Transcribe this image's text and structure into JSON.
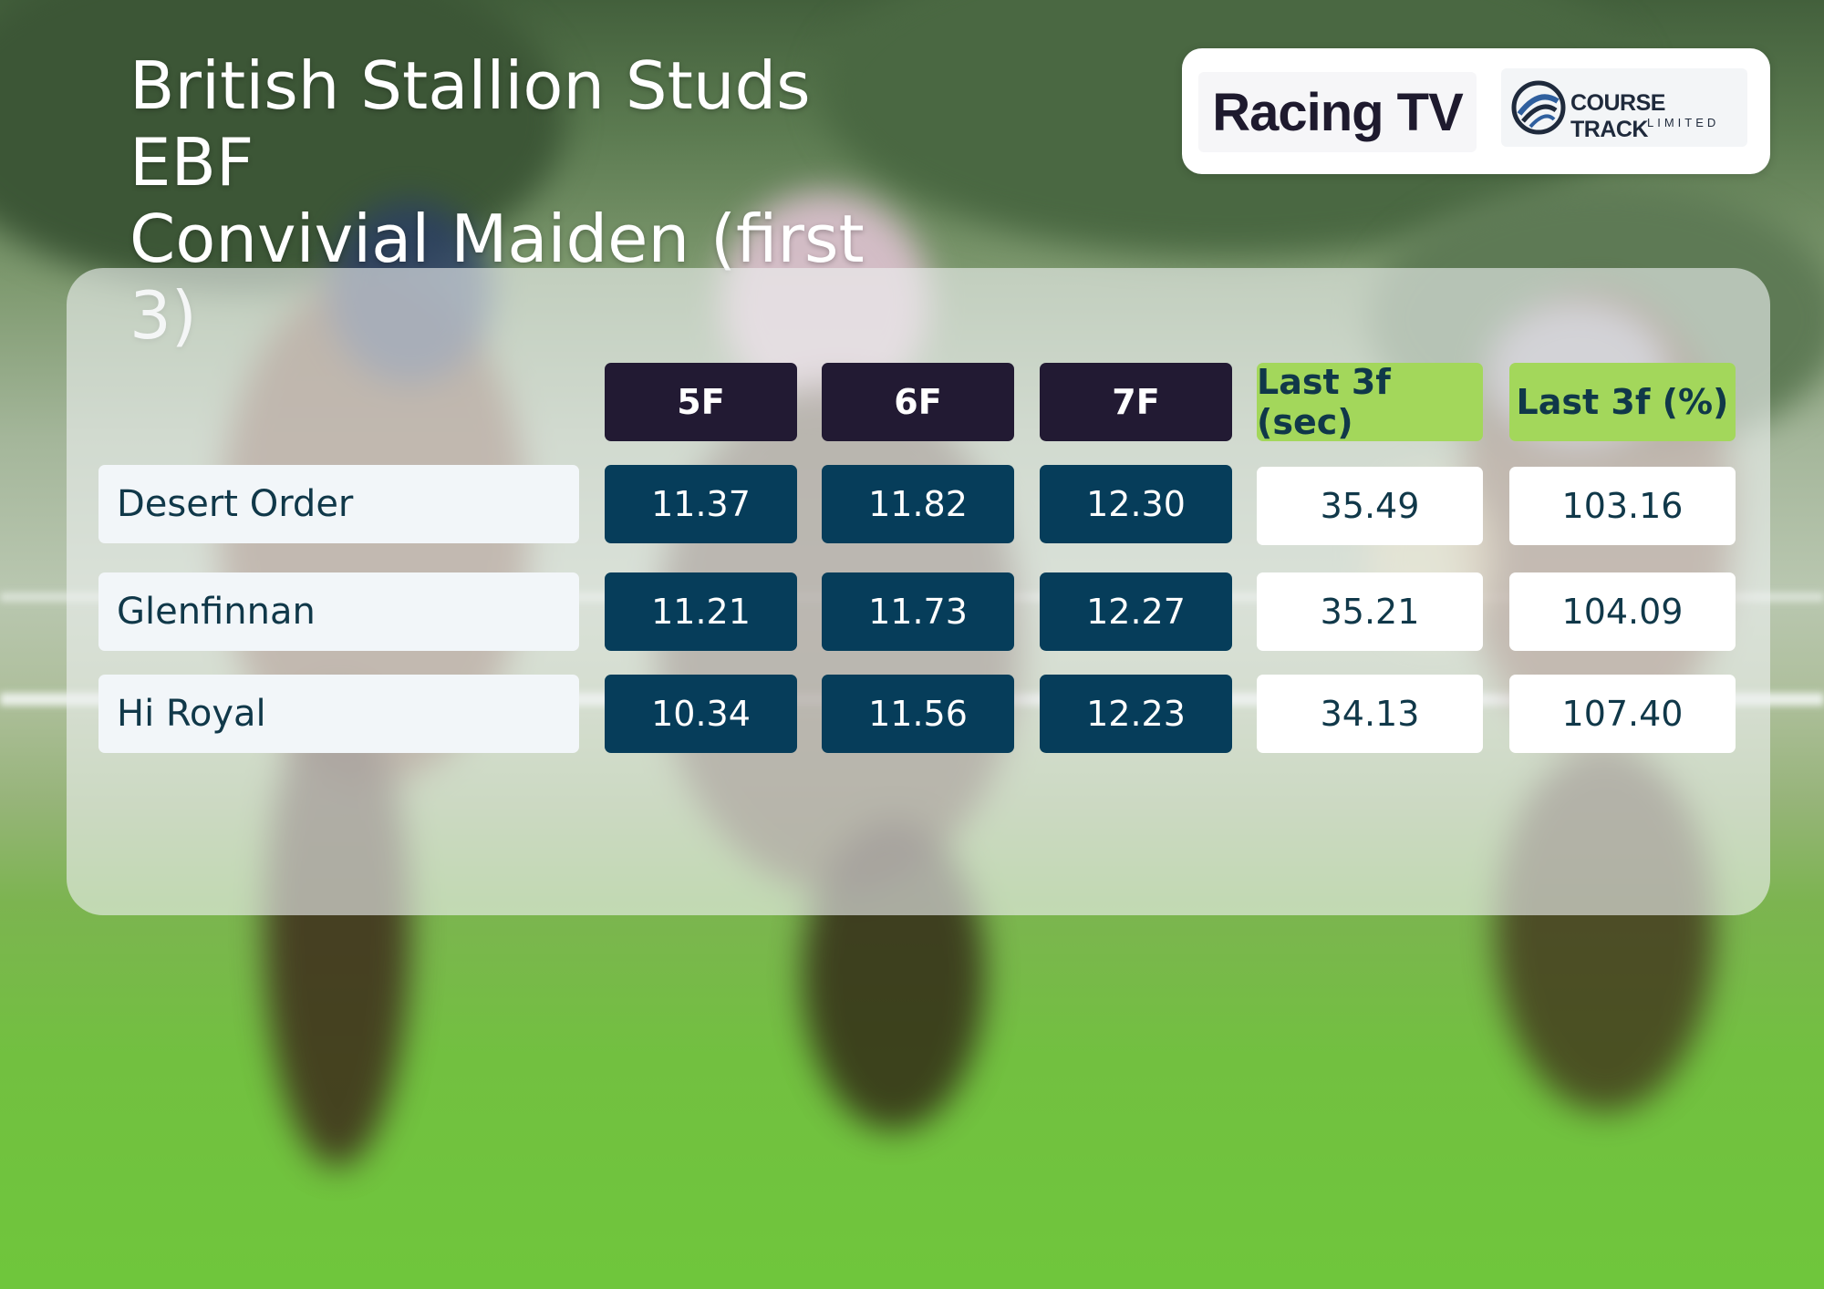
{
  "title": {
    "line1": "British Stallion Studs EBF",
    "line2": "Convivial Maiden (first 3)"
  },
  "logos": {
    "racing_tv": "Racing TV",
    "course_track": "COURSE TRACK",
    "course_track_sub": "LIMITED"
  },
  "colors": {
    "header_dark": "#221a33",
    "header_green": "#a3d75b",
    "value_dark": "#063d5a",
    "text_navy": "#103849"
  },
  "table": {
    "headers": [
      "5F",
      "6F",
      "7F",
      "Last 3f (sec)",
      "Last 3f (%)"
    ],
    "rows": [
      {
        "name": "Desert Order",
        "values": [
          "11.37",
          "11.82",
          "12.30",
          "35.49",
          "103.16"
        ]
      },
      {
        "name": "Glenfinnan",
        "values": [
          "11.21",
          "11.73",
          "12.27",
          "35.21",
          "104.09"
        ]
      },
      {
        "name": "Hi Royal",
        "values": [
          "10.34",
          "11.56",
          "12.23",
          "34.13",
          "107.40"
        ]
      }
    ]
  }
}
